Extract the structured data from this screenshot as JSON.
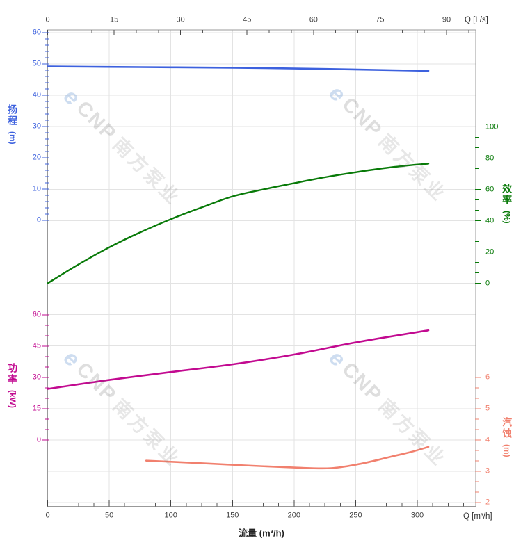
{
  "watermark": {
    "logo_glyph": "e",
    "brand": "CNP",
    "brand_cn": "南方泵业"
  },
  "axes": {
    "top": {
      "unit_label": "Q [L/s]",
      "ticks": [
        0,
        15,
        30,
        45,
        60,
        75,
        90
      ],
      "minor_step": 5
    },
    "bottom": {
      "unit_label": "Q [m³/h]",
      "axis_title": "流量 (m³/h)",
      "ticks": [
        0,
        50,
        100,
        150,
        200,
        250,
        300
      ],
      "minor_step": 12.5
    },
    "head": {
      "title": "扬程",
      "unit": "(m)",
      "color": "#3D61DE",
      "ticks": [
        60,
        50,
        40,
        30,
        20,
        10,
        0
      ],
      "minor_step": 2
    },
    "power": {
      "title": "功率",
      "unit": "(kW)",
      "color": "#C20A90",
      "ticks": [
        60,
        45,
        30,
        15,
        0
      ],
      "minor_step": 5
    },
    "efficiency": {
      "title": "效率",
      "unit": "(%)",
      "color": "#087A08",
      "ticks": [
        100,
        80,
        60,
        40,
        20,
        0
      ],
      "minor_step": 6.667
    },
    "npsh": {
      "title": "汽蚀",
      "unit": "(m)",
      "color": "#F1806E",
      "ticks": [
        6,
        5,
        4,
        3,
        2
      ],
      "minor_step": 0.333
    }
  },
  "chart_data": {
    "type": "line",
    "xlabel": "流量 (m³/h)",
    "x_unit_bottom": "m³/h",
    "x_unit_top": "L/s",
    "x_range_m3h": [
      0,
      347
    ],
    "grid": true,
    "series": [
      {
        "name": "扬程 Head (m)",
        "axis": "head",
        "color": "#3D61DE",
        "width": 2.6,
        "points": [
          [
            0,
            49.2
          ],
          [
            75,
            49.0
          ],
          [
            150,
            48.8
          ],
          [
            225,
            48.4
          ],
          [
            280,
            48.0
          ],
          [
            309,
            47.8
          ]
        ]
      },
      {
        "name": "效率 Efficiency (%)",
        "axis": "efficiency",
        "color": "#087A08",
        "width": 2.4,
        "points": [
          [
            0,
            0
          ],
          [
            25,
            12
          ],
          [
            50,
            23
          ],
          [
            75,
            32.5
          ],
          [
            100,
            41
          ],
          [
            125,
            48.5
          ],
          [
            150,
            55.5
          ],
          [
            175,
            60
          ],
          [
            200,
            64
          ],
          [
            225,
            67.8
          ],
          [
            250,
            71
          ],
          [
            275,
            73.8
          ],
          [
            295,
            75.5
          ],
          [
            309,
            76.5
          ]
        ]
      },
      {
        "name": "功率 Power (kW)",
        "axis": "power",
        "color": "#C20A90",
        "width": 2.6,
        "points": [
          [
            0,
            24.5
          ],
          [
            50,
            28.8
          ],
          [
            100,
            32.6
          ],
          [
            150,
            36.3
          ],
          [
            200,
            41
          ],
          [
            250,
            46.8
          ],
          [
            309,
            52.6
          ]
        ]
      },
      {
        "name": "汽蚀 NPSH (m)",
        "axis": "npsh",
        "color": "#F1806E",
        "width": 2.6,
        "points": [
          [
            80,
            3.34
          ],
          [
            120,
            3.27
          ],
          [
            160,
            3.19
          ],
          [
            200,
            3.12
          ],
          [
            230,
            3.1
          ],
          [
            255,
            3.25
          ],
          [
            280,
            3.48
          ],
          [
            295,
            3.62
          ],
          [
            309,
            3.78
          ]
        ]
      }
    ],
    "axis_ranges": {
      "head": [
        0,
        60
      ],
      "efficiency": [
        0,
        100
      ],
      "power": [
        0,
        60
      ],
      "npsh": [
        2,
        6
      ]
    }
  }
}
